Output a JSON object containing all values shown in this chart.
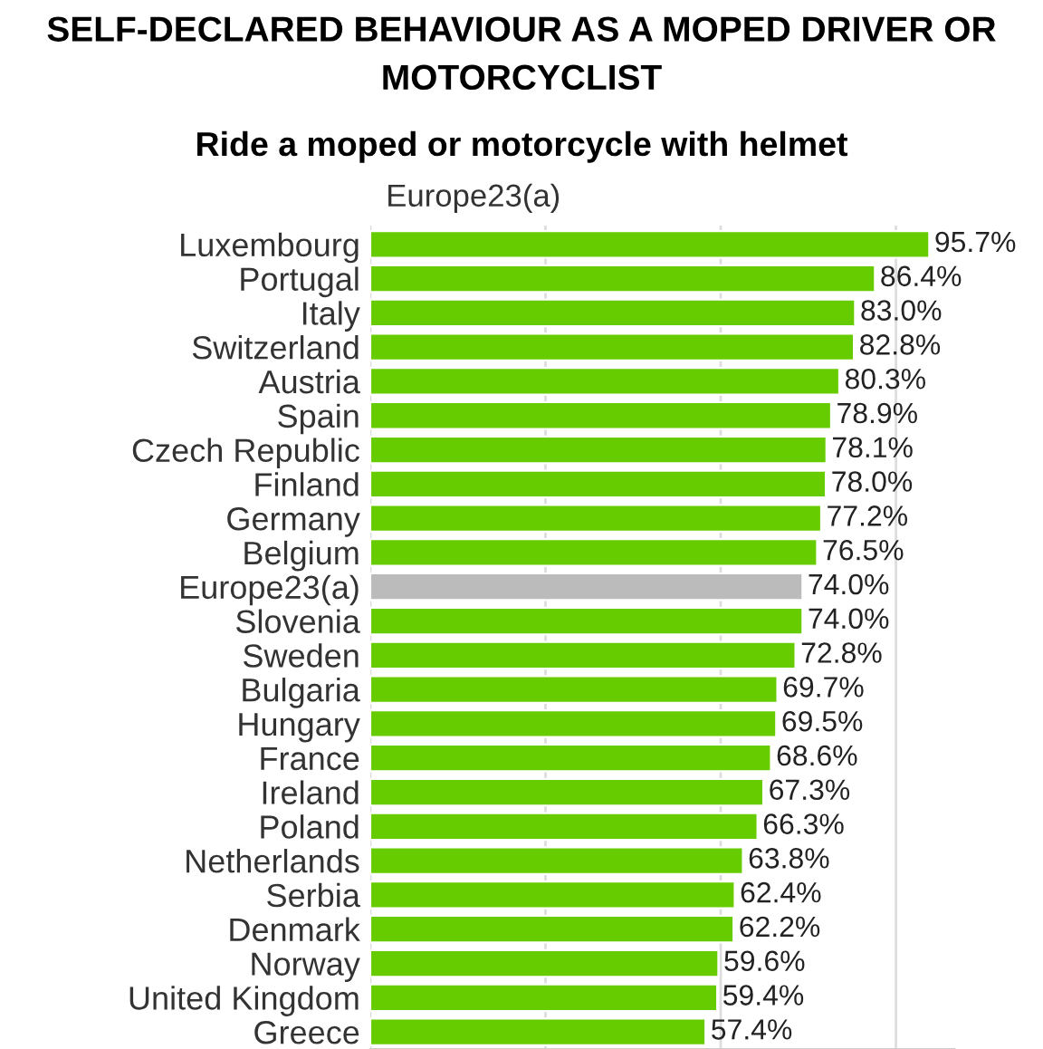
{
  "chart_data": {
    "type": "bar",
    "orientation": "horizontal",
    "title": "SELF-DECLARED BEHAVIOUR AS A MOPED DRIVER OR MOTORCYCLIST",
    "subtitle": "Ride a moped or motorcycle with helmet",
    "annotations": [
      "Europe23(a)"
    ],
    "categories": [
      "Luxembourg",
      "Portugal",
      "Italy",
      "Switzerland",
      "Austria",
      "Spain",
      "Czech Republic",
      "Finland",
      "Germany",
      "Belgium",
      "Europe23(a)",
      "Slovenia",
      "Sweden",
      "Bulgaria",
      "Hungary",
      "France",
      "Ireland",
      "Poland",
      "Netherlands",
      "Serbia",
      "Denmark",
      "Norway",
      "United Kingdom",
      "Greece"
    ],
    "values": [
      95.7,
      86.4,
      83.0,
      82.8,
      80.3,
      78.9,
      78.1,
      78.0,
      77.2,
      76.5,
      74.0,
      74.0,
      72.8,
      69.7,
      69.5,
      68.6,
      67.3,
      66.3,
      63.8,
      62.4,
      62.2,
      59.6,
      59.4,
      57.4
    ],
    "value_labels": [
      "95.7%",
      "86.4%",
      "83.0%",
      "82.8%",
      "80.3%",
      "78.9%",
      "78.1%",
      "78.0%",
      "77.2%",
      "76.5%",
      "74.0%",
      "74.0%",
      "72.8%",
      "69.7%",
      "69.5%",
      "68.6%",
      "67.3%",
      "66.3%",
      "63.8%",
      "62.4%",
      "62.2%",
      "59.6%",
      "59.4%",
      "57.4%"
    ],
    "colors": [
      "#66cc00",
      "#66cc00",
      "#66cc00",
      "#66cc00",
      "#66cc00",
      "#66cc00",
      "#66cc00",
      "#66cc00",
      "#66cc00",
      "#66cc00",
      "#bbbbbb",
      "#66cc00",
      "#66cc00",
      "#66cc00",
      "#66cc00",
      "#66cc00",
      "#66cc00",
      "#66cc00",
      "#66cc00",
      "#66cc00",
      "#66cc00",
      "#66cc00",
      "#66cc00",
      "#66cc00"
    ],
    "xlim": [
      0,
      100
    ],
    "xticks": [
      {
        "value": 0,
        "label": null
      },
      {
        "value": 30,
        "label": null
      },
      {
        "value": 60,
        "label": null
      },
      {
        "value": 90,
        "label": null
      }
    ],
    "tick_labels": "y",
    "grid": "x",
    "legend": false
  }
}
